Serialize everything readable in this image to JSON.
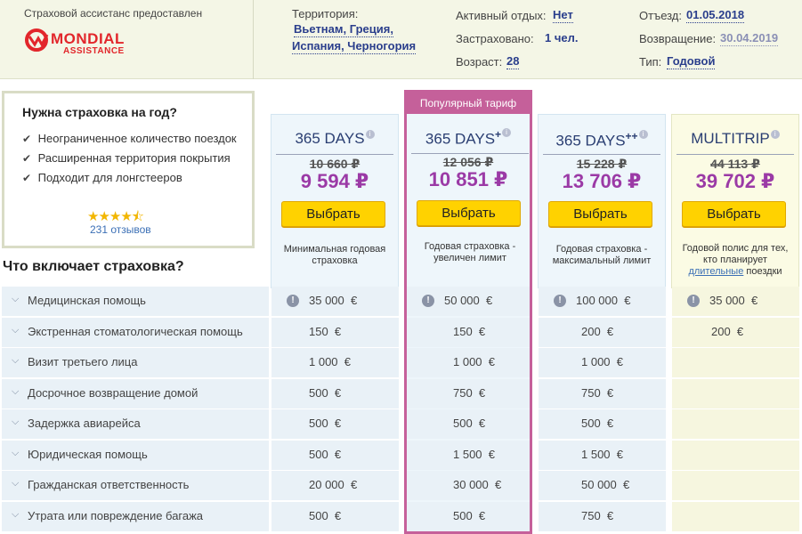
{
  "header": {
    "provider_text": "Страховой ассистанс предоставлен",
    "logo": {
      "name": "MONDIAL",
      "sub": "ASSISTANCE"
    },
    "territory_label": "Территория:",
    "territory_line1": "Вьетнам, Греция,",
    "territory_line2": "Испания, Черногория",
    "active_label": "Активный отдых:",
    "active_value": "Нет",
    "insured_label": "Застраховано:",
    "insured_value": "1 чел.",
    "age_label": "Возраст:",
    "age_value": "28",
    "depart_label": "Отъезд:",
    "depart_value": "01.05.2018",
    "return_label": "Возвращение:",
    "return_value": "30.04.2019",
    "type_label": "Тип:",
    "type_value": "Годовой"
  },
  "promo": {
    "title": "Нужна страховка на год?",
    "items": [
      "Неограниченное количество поездок",
      "Расширенная территория покрытия",
      "Подходит для лонгстееров"
    ],
    "stars": "★★★★⯪",
    "rating": 4.5,
    "reviews": "231 отзывов"
  },
  "includes_title": "Что включает страховка?",
  "plans": [
    {
      "name": "365 DAYS",
      "sup": "",
      "old_price": "10 660 ₽",
      "price": "9 594 ₽",
      "button": "Выбрать",
      "desc": "Минимальная годовая страховка"
    },
    {
      "badge": "Популярный тариф",
      "name": "365 DAYS",
      "sup": "+",
      "old_price": "12 056 ₽",
      "price": "10 851 ₽",
      "button": "Выбрать",
      "desc": "Годовая страховка - увеличен лимит"
    },
    {
      "name": "365 DAYS",
      "sup": "++",
      "old_price": "15 228 ₽",
      "price": "13 706 ₽",
      "button": "Выбрать",
      "desc": "Годовая страховка - максимальный лимит"
    },
    {
      "name": "MULTITRIP",
      "sup": "",
      "old_price": "44 113 ₽",
      "price": "39 702 ₽",
      "button": "Выбрать",
      "desc_a": "Годовой полис для тех, кто планирует",
      "desc_link": "длительные",
      "desc_b": "поездки"
    }
  ],
  "rows": [
    {
      "label": "Медицинская помощь",
      "values": [
        "35 000  €",
        "50 000  €",
        "100 000  €",
        "35 000  €"
      ]
    },
    {
      "label": "Экстренная стоматологическая помощь",
      "values": [
        "150  €",
        "150  €",
        "200  €",
        "200  €"
      ]
    },
    {
      "label": "Визит третьего лица",
      "values": [
        "1 000  €",
        "1 000  €",
        "1 000  €",
        ""
      ]
    },
    {
      "label": "Досрочное возвращение домой",
      "values": [
        "500  €",
        "750  €",
        "750  €",
        ""
      ]
    },
    {
      "label": "Задержка авиарейса",
      "values": [
        "500  €",
        "500  €",
        "500  €",
        ""
      ]
    },
    {
      "label": "Юридическая помощь",
      "values": [
        "500  €",
        "1 500  €",
        "1 500  €",
        ""
      ]
    },
    {
      "label": "Гражданская ответственность",
      "values": [
        "20 000  €",
        "30 000  €",
        "50 000  €",
        ""
      ]
    },
    {
      "label": "Утрата или повреждение багажа",
      "values": [
        "500  €",
        "500  €",
        "750  €",
        ""
      ]
    }
  ],
  "icons": {
    "check": "✔",
    "chevron": "⌵",
    "alert": "!",
    "info": "i"
  },
  "colors": {
    "accent_price": "#9b3aa6",
    "button": "#ffd200",
    "popular": "#c5609a",
    "link": "#2a3e8c"
  }
}
